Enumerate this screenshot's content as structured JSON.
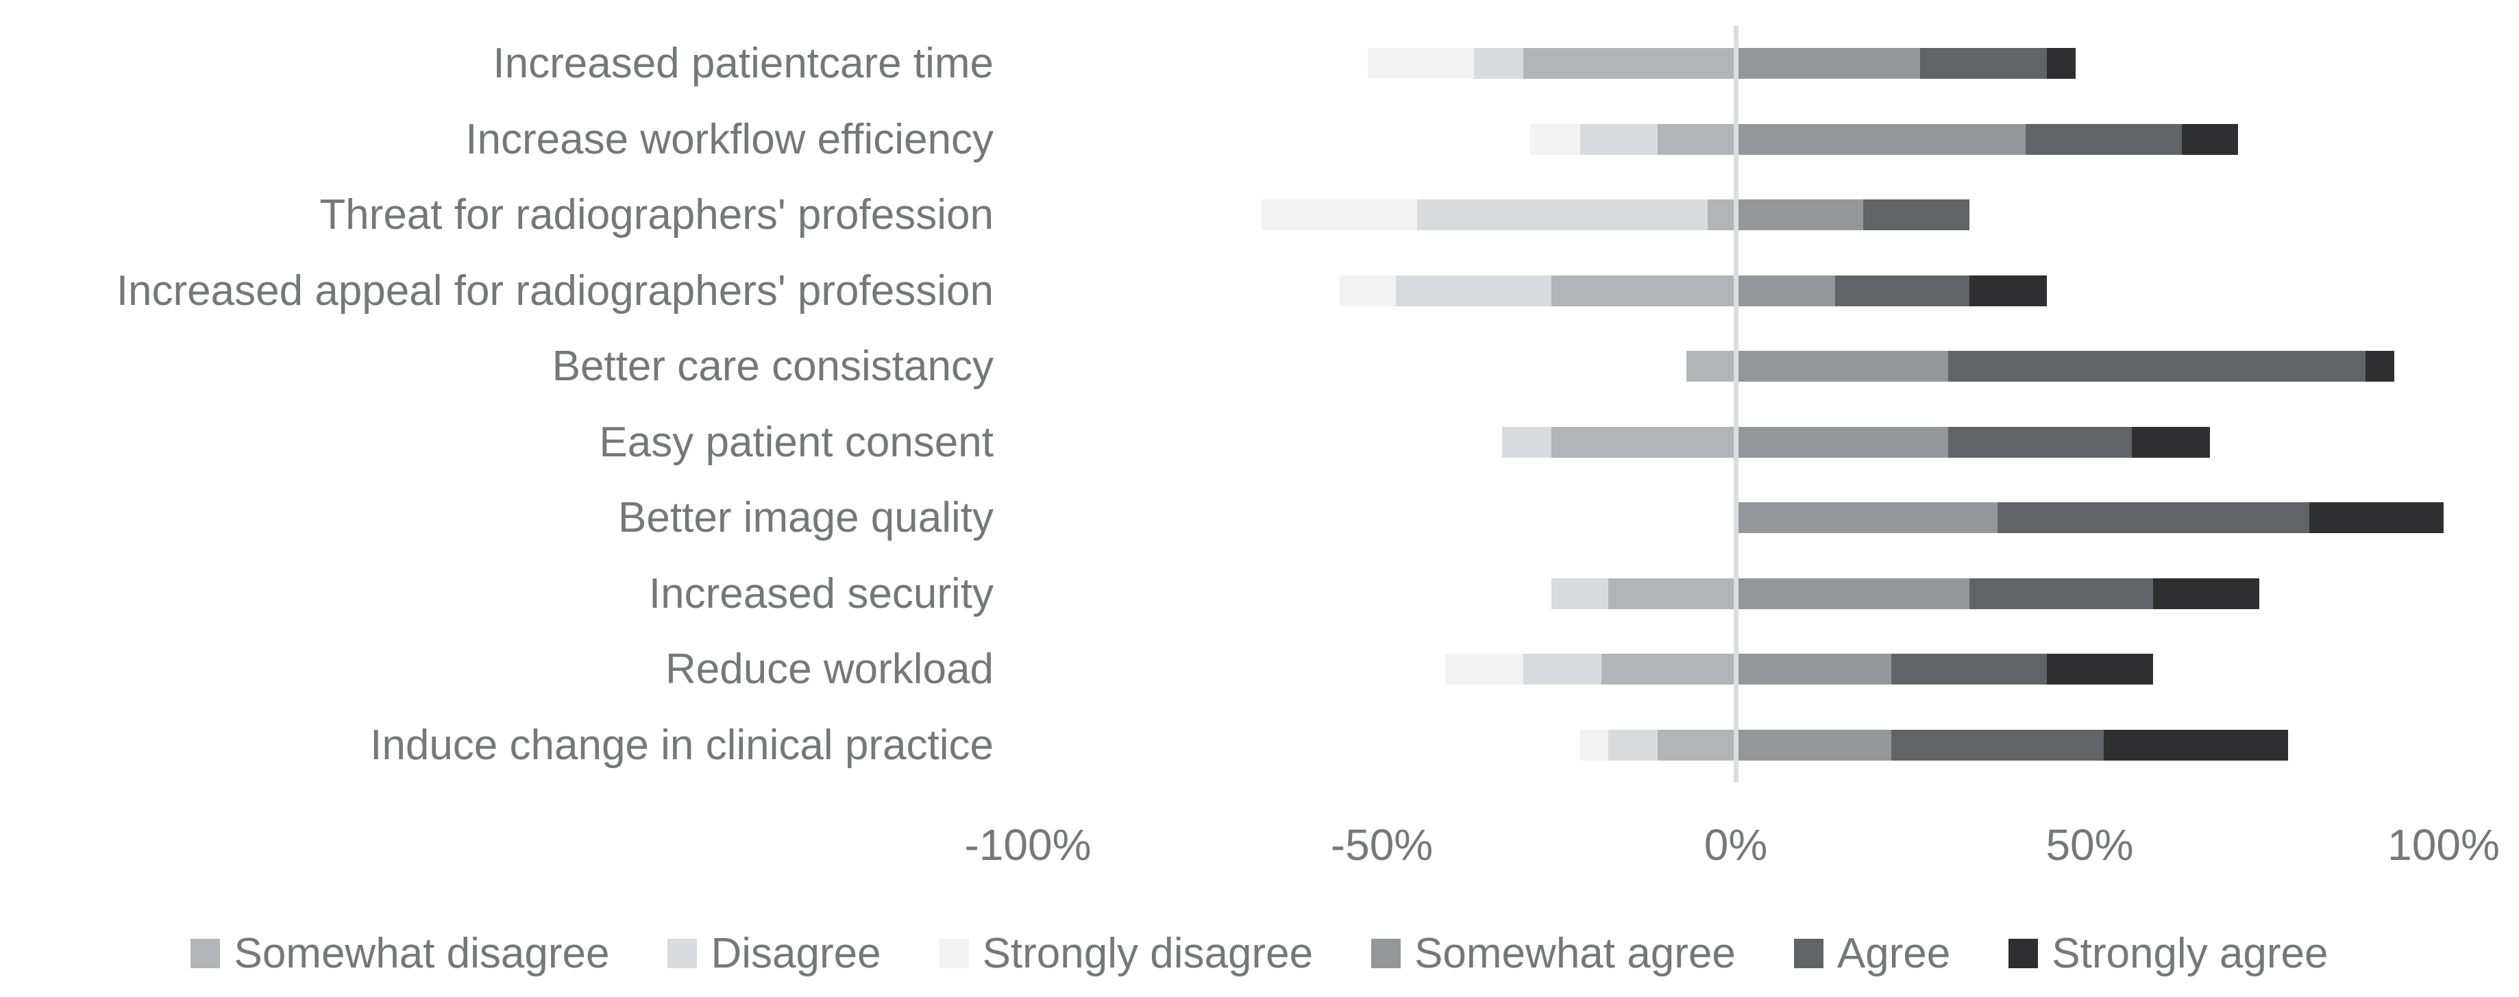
{
  "chart": {
    "background": "#ffffff",
    "text_color": "#76777a",
    "axis_line_color": "#dcdddf"
  },
  "chart_data": {
    "type": "bar",
    "variant": "horizontal-diverging-stacked",
    "unit": "%",
    "grid": false,
    "legend_position": "bottom",
    "xlim": [
      -100,
      100
    ],
    "x_ticks": [
      {
        "label": "-100%",
        "value": -100
      },
      {
        "label": "-50%",
        "value": -50
      },
      {
        "label": "0%",
        "value": 0
      },
      {
        "label": "50%",
        "value": 50
      },
      {
        "label": "100%",
        "value": 100
      }
    ],
    "categories": [
      "Increased patientcare time",
      "Increase workflow efficiency",
      "Threat for radiographers' profession",
      "Increased appeal for radiographers' profession",
      "Better care consistancy",
      "Easy patient consent",
      "Better image quality",
      "Increased security",
      "Reduce workload",
      "Induce change in clinical practice"
    ],
    "series": [
      {
        "name": "Somewhat disagree",
        "color": "#b2b4b7",
        "side": "negative",
        "values": [
          30,
          11,
          4,
          26,
          7,
          26,
          0,
          18,
          19,
          11
        ]
      },
      {
        "name": "Disagree",
        "color": "#d9dadd",
        "side": "negative",
        "values": [
          7,
          11,
          41,
          22,
          0,
          7,
          0,
          8,
          11,
          7
        ]
      },
      {
        "name": "Strongly disagree",
        "color": "#f2f2f3",
        "side": "negative",
        "values": [
          15,
          7,
          22,
          8,
          0,
          0,
          0,
          0,
          11,
          4
        ]
      },
      {
        "name": "Somewhat agree",
        "color": "#949699",
        "side": "positive",
        "values": [
          26,
          41,
          18,
          14,
          30,
          30,
          37,
          33,
          22,
          22
        ]
      },
      {
        "name": "Agree",
        "color": "#626366",
        "side": "positive",
        "values": [
          18,
          22,
          15,
          19,
          59,
          26,
          44,
          26,
          22,
          30
        ]
      },
      {
        "name": "Strongly agree",
        "color": "#2f2e30",
        "side": "positive",
        "values": [
          4,
          8,
          0,
          11,
          4,
          11,
          19,
          15,
          15,
          26
        ]
      }
    ]
  }
}
